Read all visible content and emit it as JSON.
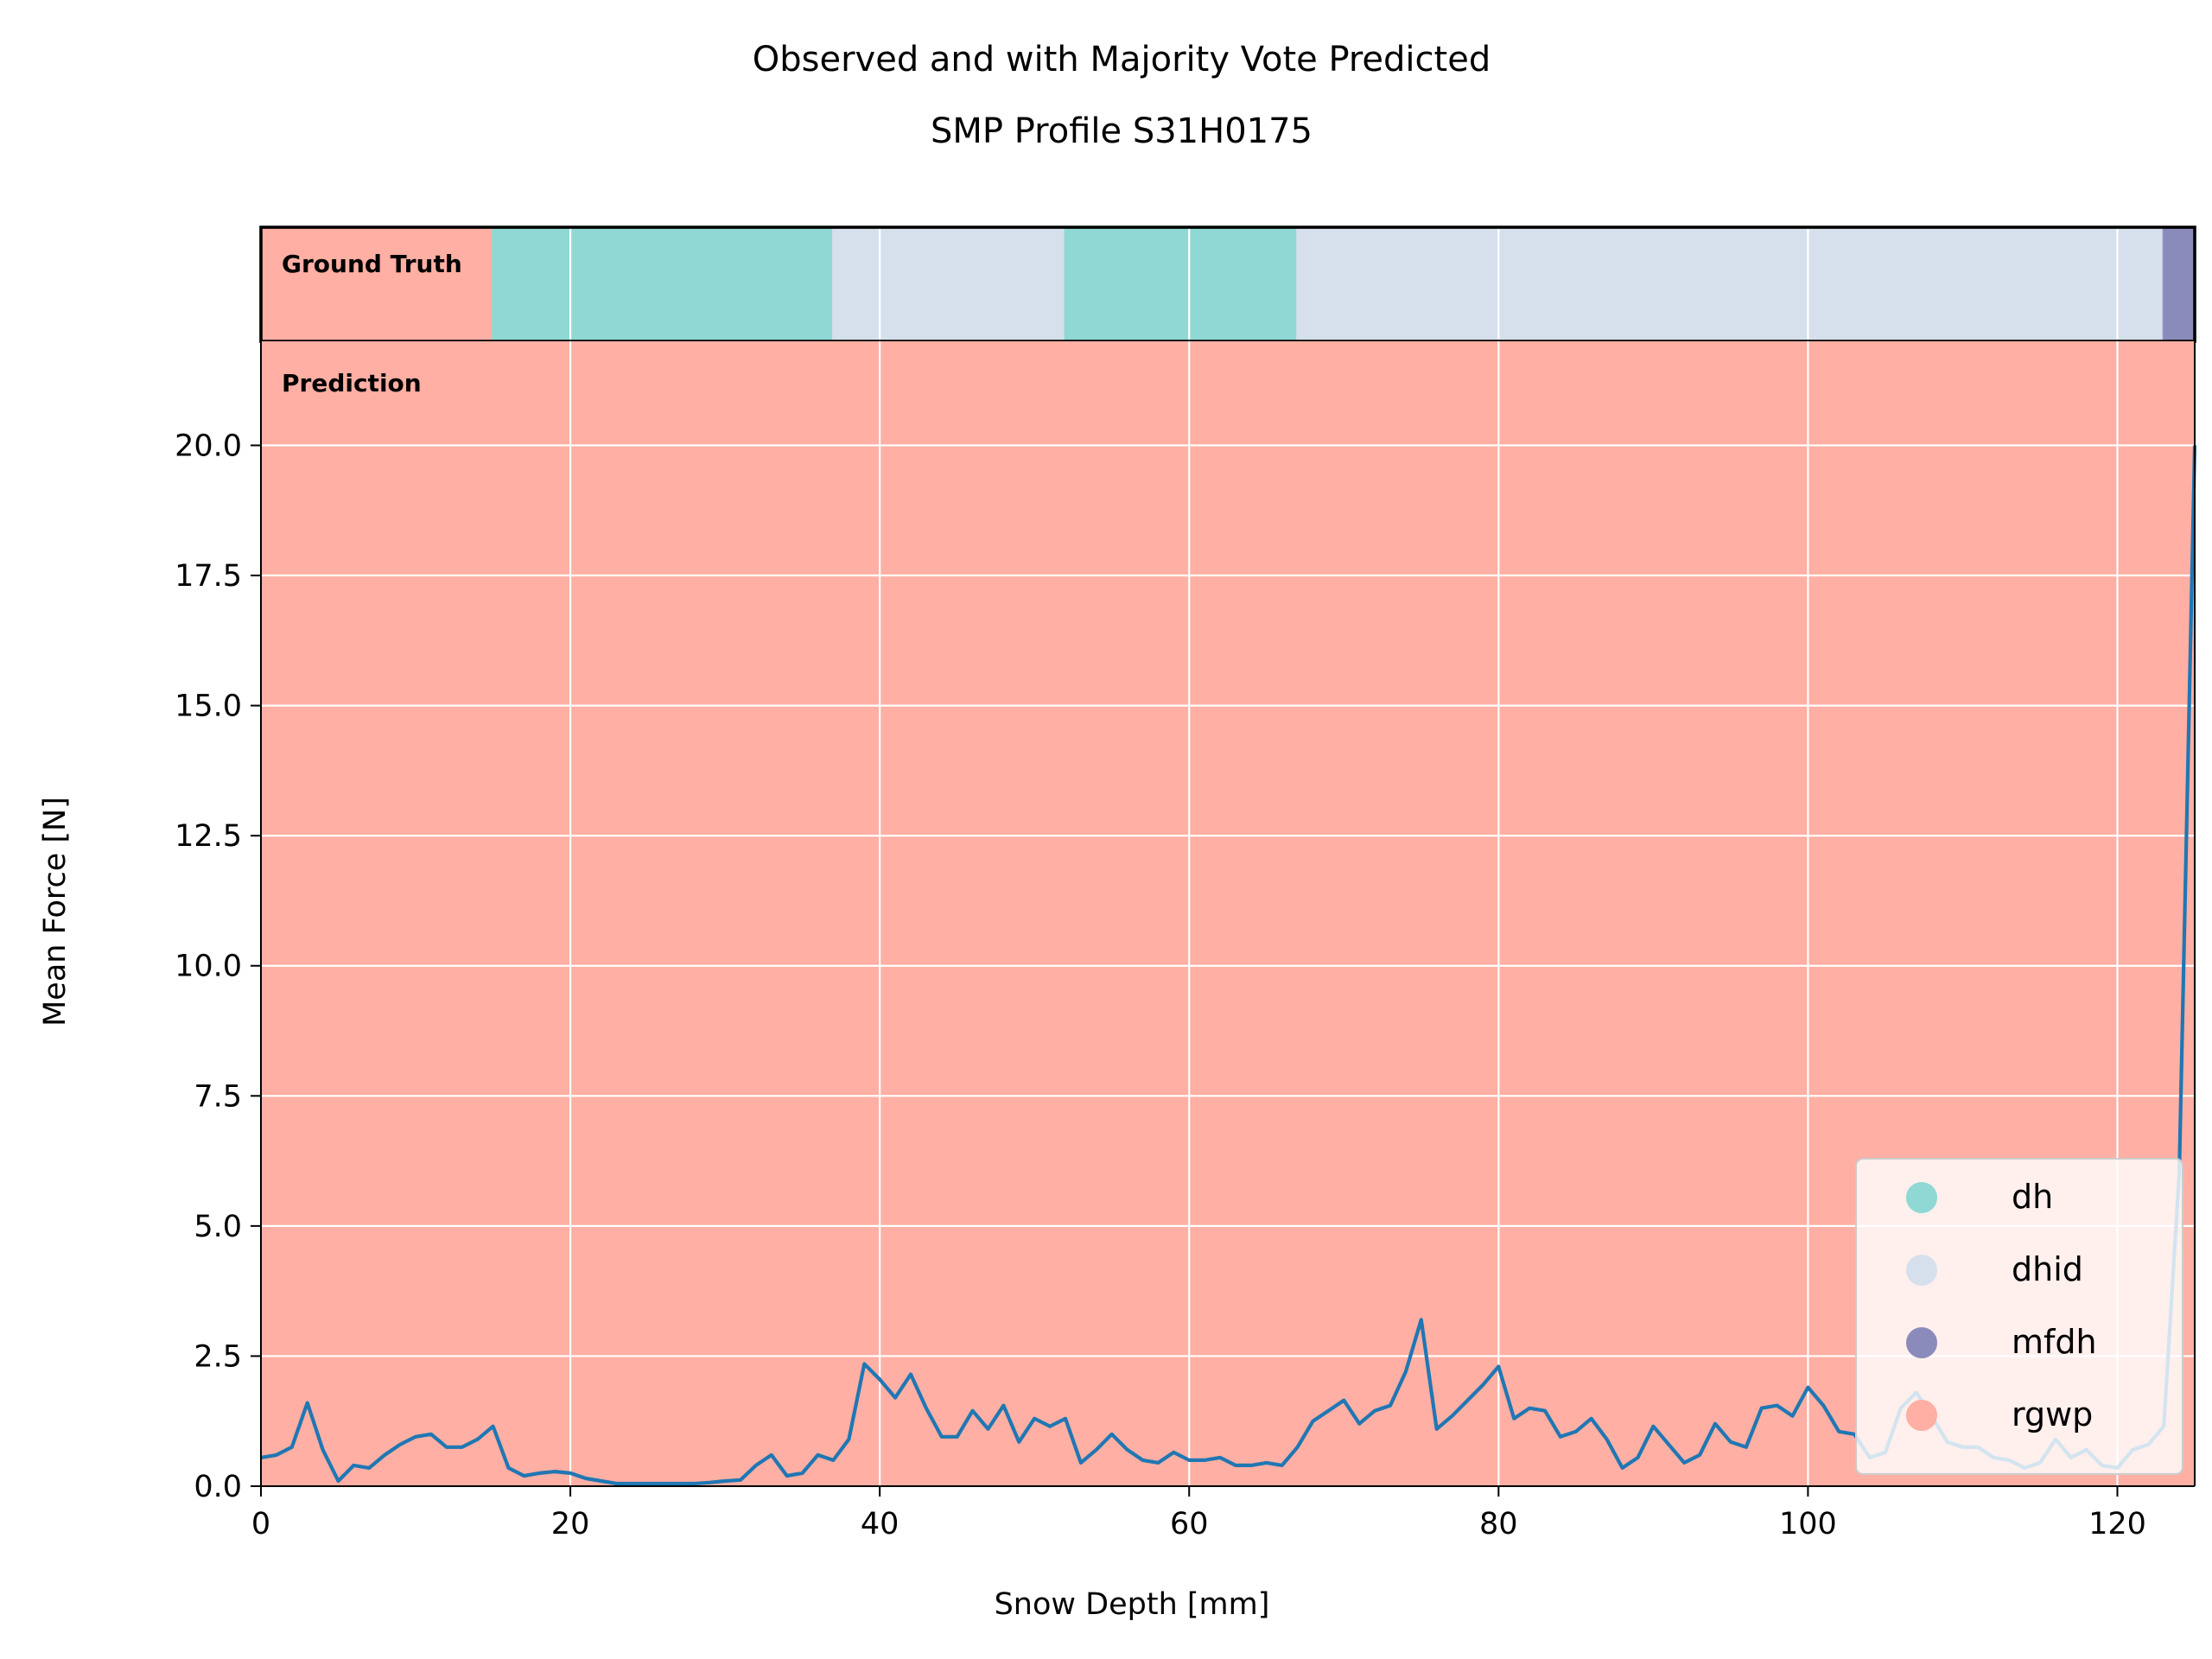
{
  "chart_data": {
    "type": "line",
    "title": "Observed and with Majority Vote Predicted",
    "subtitle": "SMP Profile S31H0175",
    "xlabel": "Snow Depth [mm]",
    "ylabel": "Mean Force [N]",
    "xlim": [
      0,
      125
    ],
    "ylim": [
      0,
      22
    ],
    "xticks": [
      0,
      20,
      40,
      60,
      80,
      100,
      120
    ],
    "xtick_labels": [
      "0",
      "20",
      "40",
      "60",
      "80",
      "100",
      "120"
    ],
    "yticks": [
      0,
      2.5,
      5,
      7.5,
      10,
      12.5,
      15,
      17.5,
      20
    ],
    "ytick_labels": [
      "0.0",
      "2.5",
      "5.0",
      "7.5",
      "10.0",
      "12.5",
      "15.0",
      "17.5",
      "20.0"
    ],
    "grid": true,
    "colors": {
      "line": "#1f77b4",
      "dh": "#8fd8d3",
      "dhid": "#d6e0ec",
      "mfdh": "#8b8bbb",
      "rgwp": "#ffafa3"
    },
    "ground_truth_label": "Ground Truth",
    "prediction_label": "Prediction",
    "ground_truth": [
      {
        "label": "rgwp",
        "start": 0,
        "end": 15
      },
      {
        "label": "dh",
        "start": 15,
        "end": 37
      },
      {
        "label": "dhid",
        "start": 37,
        "end": 52
      },
      {
        "label": "dh",
        "start": 52,
        "end": 67
      },
      {
        "label": "dhid",
        "start": 67,
        "end": 123
      },
      {
        "label": "mfdh",
        "start": 123,
        "end": 125
      }
    ],
    "prediction": [
      {
        "label": "rgwp",
        "start": 0,
        "end": 125
      }
    ],
    "legend": {
      "placement": "lower right",
      "entries": [
        {
          "label": "dh",
          "color": "#8fd8d3"
        },
        {
          "label": "dhid",
          "color": "#d6e0ec"
        },
        {
          "label": "mfdh",
          "color": "#8b8bbb"
        },
        {
          "label": "rgwp",
          "color": "#ffafa3"
        }
      ]
    },
    "series": [
      {
        "x": [
          0,
          1,
          2,
          3,
          4,
          5,
          6,
          7,
          8,
          9,
          10,
          11,
          12,
          13,
          14,
          15,
          16,
          17,
          18,
          19,
          20,
          21,
          22,
          23,
          24,
          25,
          26,
          27,
          28,
          29,
          30,
          31,
          32,
          33,
          34,
          35,
          36,
          37,
          38,
          39,
          40,
          41,
          42,
          43,
          44,
          45,
          46,
          47,
          48,
          49,
          50,
          51,
          52,
          53,
          54,
          55,
          56,
          57,
          58,
          59,
          60,
          61,
          62,
          63,
          64,
          65,
          66,
          67,
          68,
          69,
          70,
          71,
          72,
          73,
          74,
          75,
          76,
          77,
          78,
          79,
          80,
          81,
          82,
          83,
          84,
          85,
          86,
          87,
          88,
          89,
          90,
          91,
          92,
          93,
          94,
          95,
          96,
          97,
          98,
          99,
          100,
          101,
          102,
          103,
          104,
          105,
          106,
          107,
          108,
          109,
          110,
          111,
          112,
          113,
          114,
          115,
          116,
          117,
          118,
          119,
          120,
          121,
          122,
          123,
          124,
          125
        ],
        "y": [
          0.55,
          0.6,
          0.75,
          1.6,
          0.7,
          0.1,
          0.4,
          0.35,
          0.6,
          0.8,
          0.95,
          1.0,
          0.75,
          0.75,
          0.9,
          1.15,
          0.35,
          0.2,
          0.25,
          0.28,
          0.25,
          0.15,
          0.1,
          0.05,
          0.05,
          0.05,
          0.05,
          0.05,
          0.05,
          0.07,
          0.1,
          0.12,
          0.4,
          0.6,
          0.2,
          0.25,
          0.6,
          0.5,
          0.9,
          2.35,
          2.05,
          1.7,
          2.15,
          1.5,
          0.95,
          0.95,
          1.45,
          1.1,
          1.55,
          0.85,
          1.3,
          1.15,
          1.3,
          0.45,
          0.7,
          1.0,
          0.7,
          0.5,
          0.45,
          0.65,
          0.5,
          0.5,
          0.55,
          0.4,
          0.4,
          0.45,
          0.4,
          0.75,
          1.25,
          1.45,
          1.65,
          1.2,
          1.45,
          1.55,
          2.2,
          3.2,
          1.1,
          1.35,
          1.65,
          1.95,
          2.3,
          1.3,
          1.5,
          1.45,
          0.95,
          1.05,
          1.3,
          0.9,
          0.35,
          0.55,
          1.15,
          0.8,
          0.45,
          0.6,
          1.2,
          0.85,
          0.75,
          1.5,
          1.55,
          1.35,
          1.9,
          1.55,
          1.05,
          1.0,
          0.55,
          0.65,
          1.5,
          1.8,
          1.35,
          0.85,
          0.75,
          0.75,
          0.55,
          0.5,
          0.35,
          0.45,
          0.9,
          0.55,
          0.7,
          0.4,
          0.35,
          0.7,
          0.8,
          1.15,
          6.0,
          20.0
        ]
      }
    ]
  }
}
